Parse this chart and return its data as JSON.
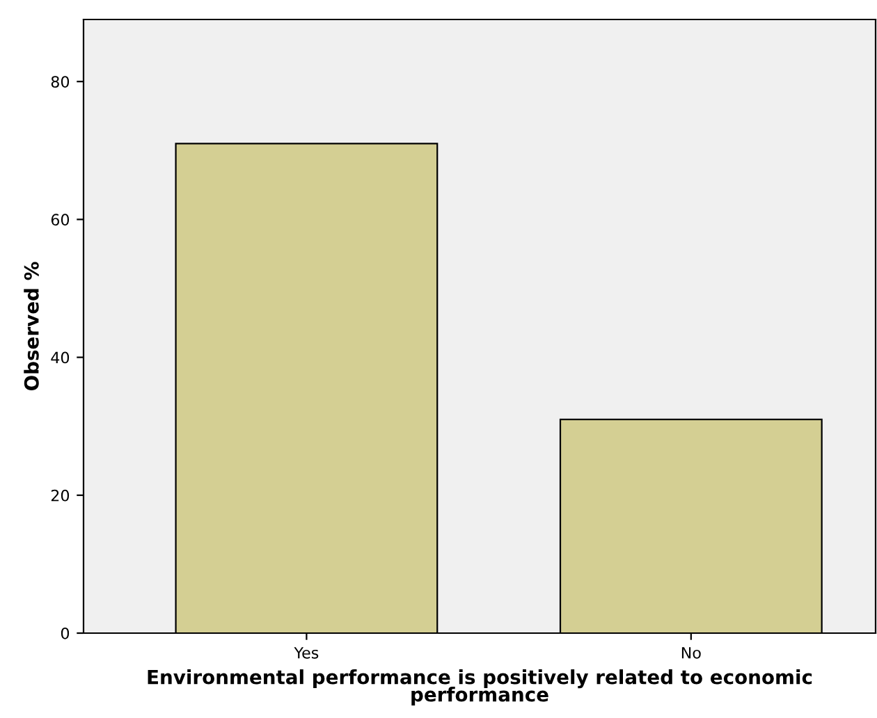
{
  "chart_data": {
    "type": "bar",
    "xlabel": "Environmental performance is positively related to economic\nperformance",
    "ylabel": "Observed %",
    "categories": [
      "Yes",
      "No"
    ],
    "values": [
      71,
      31
    ],
    "color": "#d4cf93",
    "ylim": [
      0,
      89
    ],
    "yticks": [
      0,
      20,
      40,
      60,
      80
    ],
    "grid": false,
    "legend": false
  }
}
